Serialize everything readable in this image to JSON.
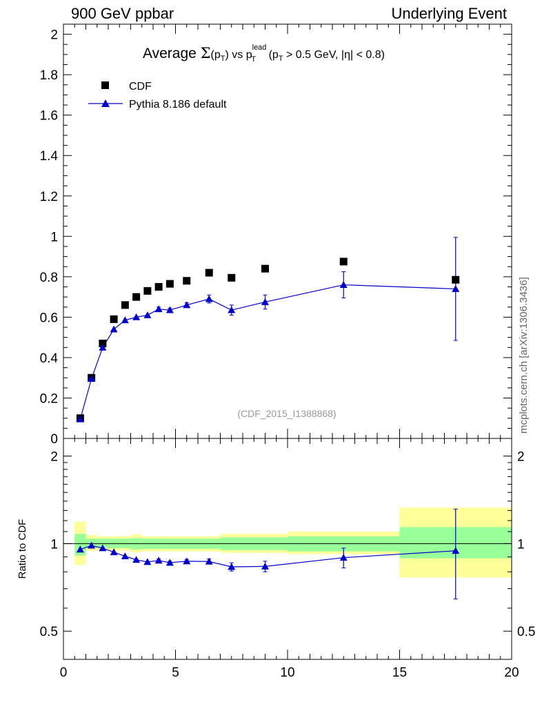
{
  "header": {
    "left": "900 GeV ppbar",
    "right": "Underlying Event"
  },
  "side_label": "mcplots.cern.ch [arXiv:1306.3436]",
  "watermark": "(CDF_2015_I1388868)",
  "title": {
    "prefix": "Average ",
    "sigma": "Σ",
    "pt_open": "(p",
    "pt_sub": "T",
    "pt_close": ")",
    "vs": " vs p",
    "lead_sup": "lead",
    "lead_sub": "T",
    "cut_open": " (p",
    "cut_sub": "T",
    "cut_rest": " > 0.5 GeV, |η| < 0.8)"
  },
  "legend": {
    "data_label": "CDF",
    "mc_label": "Pythia 8.186 default"
  },
  "ratio_ylabel": "Ratio to CDF",
  "colors": {
    "data": "#000000",
    "mc": "#0000cc",
    "band_inner": "#99ff99",
    "band_outer": "#ffff99"
  },
  "chart_data": [
    {
      "type": "scatter",
      "xlim": [
        0,
        20
      ],
      "ylim": [
        0,
        2.05
      ],
      "x_ticks": [
        0,
        5,
        10,
        15,
        20
      ],
      "y_ticks": [
        0,
        0.2,
        0.4,
        0.6,
        0.8,
        1,
        1.2,
        1.4,
        1.6,
        1.8,
        2
      ],
      "y_tick_labels": [
        "0",
        "0.2",
        "0.4",
        "0.6",
        "0.8",
        "1",
        "1.2",
        "1.4",
        "1.6",
        "1.8",
        "2"
      ],
      "series": [
        {
          "name": "CDF",
          "marker": "square",
          "x": [
            0.75,
            1.25,
            1.75,
            2.25,
            2.75,
            3.25,
            3.75,
            4.25,
            4.75,
            5.5,
            6.5,
            7.5,
            9.0,
            12.5,
            17.5
          ],
          "y": [
            0.1,
            0.3,
            0.47,
            0.59,
            0.66,
            0.7,
            0.73,
            0.75,
            0.765,
            0.78,
            0.82,
            0.795,
            0.84,
            0.875,
            0.785
          ]
        },
        {
          "name": "Pythia 8.186 default",
          "marker": "triangle",
          "x": [
            0.75,
            1.25,
            1.75,
            2.25,
            2.75,
            3.25,
            3.75,
            4.25,
            4.75,
            5.5,
            6.5,
            7.5,
            9.0,
            12.5,
            17.5
          ],
          "y": [
            0.095,
            0.295,
            0.45,
            0.54,
            0.585,
            0.6,
            0.61,
            0.64,
            0.635,
            0.66,
            0.69,
            0.635,
            0.675,
            0.76,
            0.74
          ],
          "yerr": [
            0.004,
            0.005,
            0.006,
            0.007,
            0.008,
            0.008,
            0.009,
            0.01,
            0.01,
            0.012,
            0.02,
            0.025,
            0.035,
            0.065,
            0.255
          ]
        }
      ]
    },
    {
      "type": "scatter",
      "ylabel": "Ratio to CDF",
      "xlim": [
        0,
        20
      ],
      "ylim": [
        0.4,
        2.3
      ],
      "y_scale": "log",
      "x_ticks": [
        0,
        5,
        10,
        15,
        20
      ],
      "x_tick_labels": [
        "0",
        "5",
        "10",
        "15",
        "20"
      ],
      "y_ticks": [
        0.5,
        1,
        2
      ],
      "y_tick_labels": [
        "0.5",
        "1",
        "2"
      ],
      "reference_line": 1,
      "bands": {
        "x_edges": [
          0.5,
          1.0,
          1.5,
          2.0,
          2.5,
          3.0,
          3.5,
          4.0,
          4.5,
          5.0,
          6.0,
          7.0,
          8.0,
          10.0,
          15.0,
          20.0
        ],
        "inner_lo": [
          0.91,
          0.965,
          0.965,
          0.965,
          0.965,
          0.955,
          0.96,
          0.96,
          0.96,
          0.96,
          0.96,
          0.95,
          0.95,
          0.94,
          0.89
        ],
        "inner_hi": [
          1.08,
          1.04,
          1.04,
          1.04,
          1.04,
          1.045,
          1.04,
          1.04,
          1.04,
          1.04,
          1.04,
          1.05,
          1.05,
          1.06,
          1.14
        ],
        "outer_lo": [
          0.845,
          0.945,
          0.945,
          0.945,
          0.945,
          0.935,
          0.94,
          0.94,
          0.94,
          0.94,
          0.94,
          0.93,
          0.93,
          0.92,
          0.765
        ],
        "outer_hi": [
          1.19,
          1.07,
          1.06,
          1.06,
          1.06,
          1.075,
          1.06,
          1.06,
          1.06,
          1.06,
          1.06,
          1.08,
          1.08,
          1.1,
          1.33
        ]
      },
      "series": [
        {
          "name": "Pythia 8.186 default",
          "x": [
            0.75,
            1.25,
            1.75,
            2.25,
            2.75,
            3.25,
            3.75,
            4.25,
            4.75,
            5.5,
            6.5,
            7.5,
            9.0,
            12.5,
            17.5
          ],
          "y": [
            0.955,
            0.985,
            0.965,
            0.935,
            0.905,
            0.88,
            0.865,
            0.875,
            0.86,
            0.87,
            0.868,
            0.832,
            0.835,
            0.895,
            0.945
          ],
          "yerr_lo": [
            0.006,
            0.006,
            0.006,
            0.006,
            0.008,
            0.008,
            0.009,
            0.01,
            0.01,
            0.012,
            0.018,
            0.027,
            0.035,
            0.07,
            0.3
          ],
          "yerr_hi": [
            0.006,
            0.006,
            0.006,
            0.006,
            0.008,
            0.008,
            0.009,
            0.01,
            0.01,
            0.012,
            0.018,
            0.027,
            0.035,
            0.07,
            0.37
          ]
        }
      ]
    }
  ]
}
